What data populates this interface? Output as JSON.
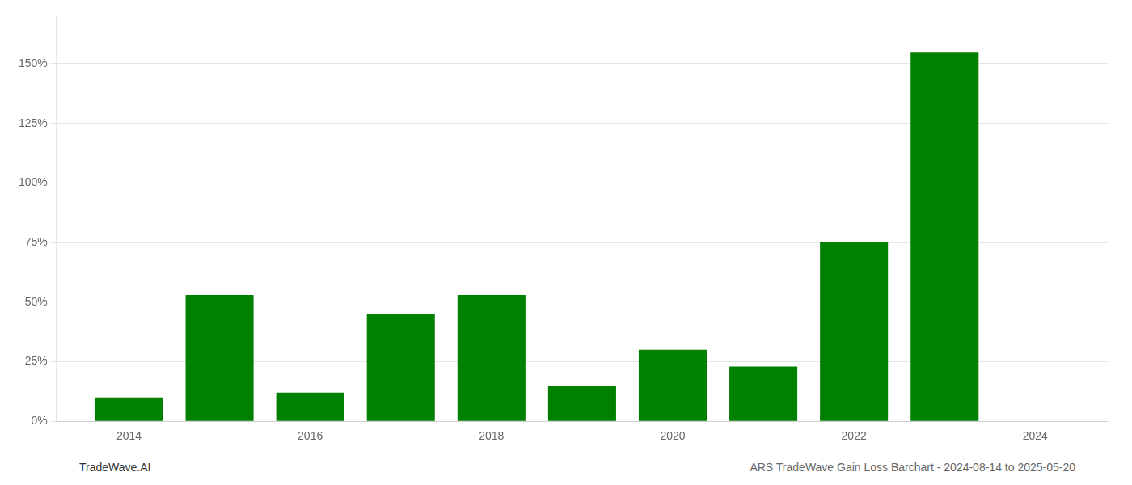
{
  "chart_data": {
    "type": "bar",
    "x": [
      2014,
      2015,
      2016,
      2017,
      2018,
      2019,
      2020,
      2021,
      2022,
      2023
    ],
    "values": [
      0.1,
      0.53,
      0.12,
      0.45,
      0.53,
      0.15,
      0.3,
      0.23,
      0.75,
      1.55
    ],
    "color": "#008000",
    "xlim": [
      2013.2,
      2024.8
    ],
    "xticks": [
      2014,
      2016,
      2018,
      2020,
      2022,
      2024
    ],
    "ylim": [
      0,
      1.7
    ],
    "yticks": [
      {
        "value": 0.0,
        "label": "0%"
      },
      {
        "value": 0.25,
        "label": "25%"
      },
      {
        "value": 0.5,
        "label": "50%"
      },
      {
        "value": 0.75,
        "label": "75%"
      },
      {
        "value": 1.0,
        "label": "100%"
      },
      {
        "value": 1.25,
        "label": "125%"
      },
      {
        "value": 1.5,
        "label": "150%"
      }
    ],
    "grid": true,
    "annotations": [
      "TradeWave.AI",
      "ARS TradeWave Gain Loss Barchart - 2024-08-14 to 2025-05-20"
    ]
  }
}
